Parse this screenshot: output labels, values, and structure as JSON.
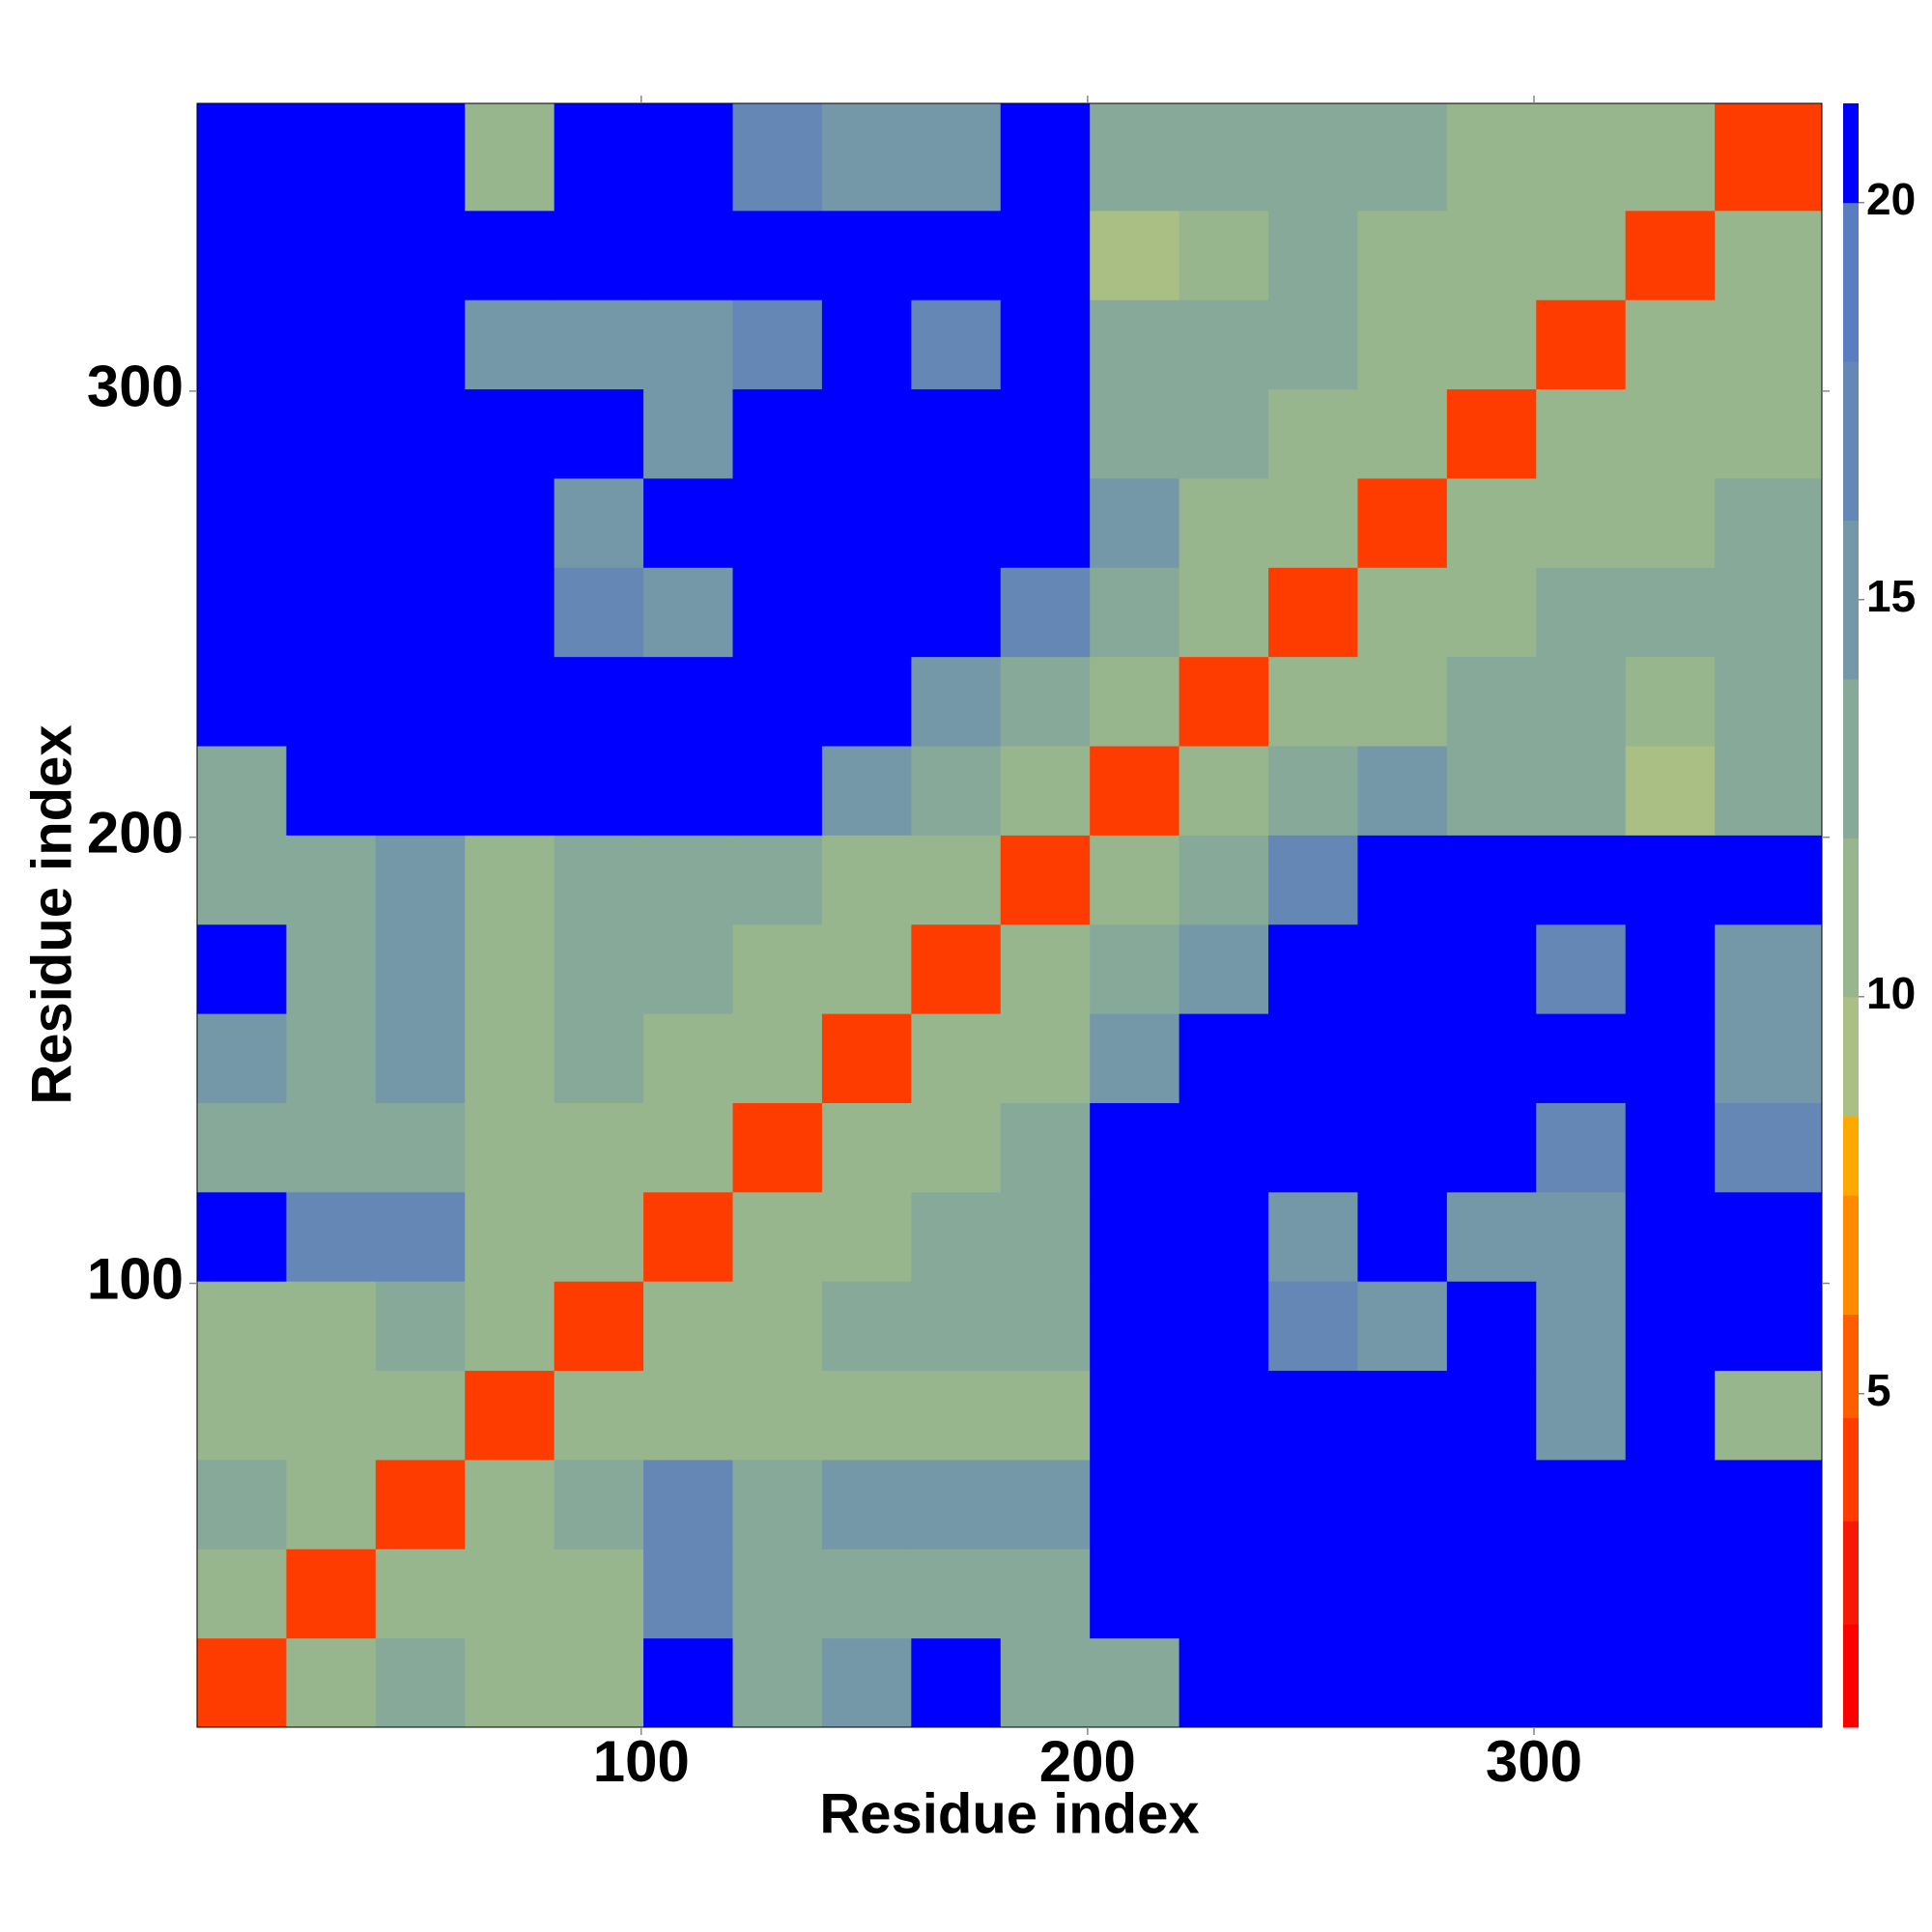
{
  "chart_data": {
    "type": "heatmap",
    "xlabel": "Residue index",
    "ylabel": "Residue index",
    "xlim": [
      0.5,
      364.5
    ],
    "ylim": [
      0.5,
      364.5
    ],
    "xticks": [
      100,
      200,
      300
    ],
    "yticks": [
      100,
      200,
      300
    ],
    "bins": [
      0.5,
      20.5,
      40.5,
      60.5,
      80.5,
      100.5,
      120.5,
      140.5,
      160.5,
      180.5,
      200.5,
      220.5,
      240.5,
      260.5,
      280.5,
      300.5,
      320.5,
      340.5,
      364.5
    ],
    "z": [
      [
        4,
        11,
        14,
        11,
        12,
        21,
        14,
        15,
        21,
        13,
        14,
        21,
        21,
        21,
        21,
        21,
        21,
        21
      ],
      [
        11,
        4,
        11,
        12,
        12,
        17,
        13,
        13,
        14,
        13,
        21,
        21,
        21,
        21,
        21,
        21,
        21,
        21
      ],
      [
        14,
        11,
        4,
        11,
        13,
        18,
        14,
        16,
        15,
        16,
        21,
        21,
        21,
        21,
        21,
        21,
        21,
        21
      ],
      [
        11,
        12,
        11,
        4,
        11,
        12,
        12,
        11,
        12,
        11,
        21,
        21,
        21,
        21,
        21,
        16,
        21,
        12
      ],
      [
        12,
        12,
        13,
        11,
        4,
        11,
        11,
        13,
        13,
        14,
        21,
        21,
        17,
        16,
        21,
        16,
        21,
        21
      ],
      [
        21,
        17,
        18,
        12,
        11,
        4,
        11,
        12,
        13,
        14,
        21,
        21,
        16,
        21,
        15,
        15,
        21,
        21
      ],
      [
        14,
        13,
        14,
        12,
        11,
        11,
        4,
        11,
        12,
        13,
        21,
        21,
        21,
        21,
        21,
        17,
        21,
        17
      ],
      [
        15,
        13,
        16,
        11,
        13,
        12,
        11,
        4,
        11,
        12,
        16,
        21,
        21,
        21,
        21,
        21,
        21,
        16
      ],
      [
        21,
        14,
        15,
        12,
        13,
        13,
        12,
        11,
        4,
        11,
        13,
        15,
        21,
        21,
        21,
        17,
        21,
        15
      ],
      [
        13,
        13,
        16,
        11,
        14,
        14,
        13,
        12,
        11,
        4,
        11,
        13,
        17,
        21,
        21,
        21,
        21,
        21
      ],
      [
        14,
        21,
        21,
        21,
        21,
        21,
        21,
        16,
        13,
        11,
        4,
        11,
        13,
        15,
        13,
        13,
        10,
        13
      ],
      [
        21,
        21,
        21,
        21,
        21,
        21,
        21,
        21,
        15,
        13,
        11,
        4,
        11,
        12,
        13,
        13,
        11,
        14
      ],
      [
        21,
        21,
        21,
        21,
        17,
        16,
        21,
        21,
        21,
        17,
        13,
        11,
        4,
        11,
        12,
        13,
        13,
        14
      ],
      [
        21,
        21,
        21,
        21,
        16,
        21,
        21,
        21,
        21,
        21,
        15,
        12,
        11,
        4,
        11,
        12,
        12,
        13
      ],
      [
        21,
        21,
        21,
        21,
        21,
        15,
        21,
        21,
        21,
        21,
        13,
        13,
        12,
        11,
        4,
        11,
        11,
        12
      ],
      [
        21,
        21,
        21,
        16,
        16,
        15,
        17,
        21,
        17,
        21,
        13,
        13,
        13,
        12,
        11,
        4,
        11,
        12
      ],
      [
        21,
        21,
        21,
        21,
        21,
        21,
        21,
        21,
        21,
        21,
        10,
        11,
        13,
        12,
        11,
        11,
        4,
        11
      ],
      [
        21,
        21,
        21,
        12,
        21,
        21,
        17,
        16,
        15,
        21,
        13,
        14,
        14,
        13,
        12,
        12,
        11,
        4
      ]
    ],
    "zlim": [
      0.8,
      21.25
    ],
    "zticks": [
      5,
      10,
      15,
      20
    ],
    "levels": [
      0.8,
      2.1,
      3.4,
      4.7,
      6,
      7.5,
      8.5,
      10,
      12,
      14,
      16,
      18,
      20,
      21.25
    ],
    "colors": [
      "#ff0000",
      "#f51a05",
      "#ff3c00",
      "#ff5e00",
      "#ff8a00",
      "#ffa800",
      "#a9bf84",
      "#98b68e",
      "#86a99a",
      "#7598a8",
      "#6587b6",
      "#5a7cc0",
      "#0000ff"
    ]
  }
}
